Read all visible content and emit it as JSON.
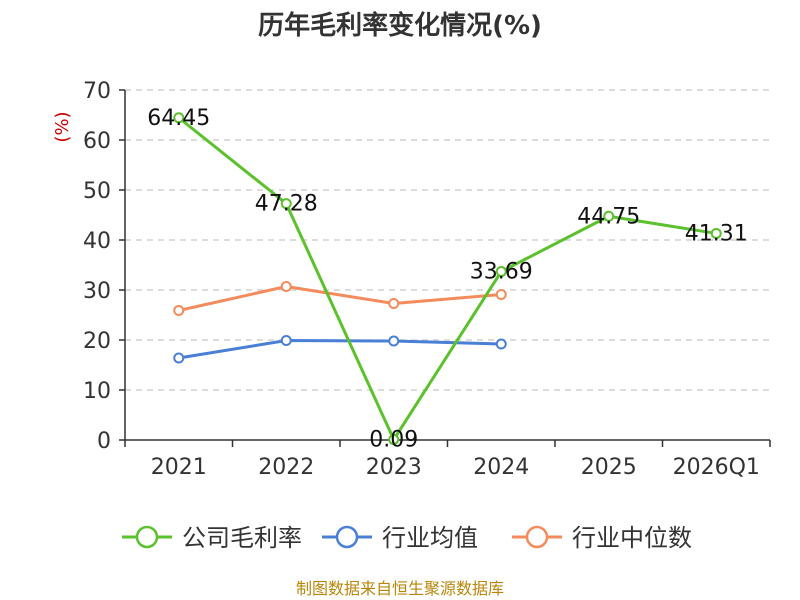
{
  "chart_data": {
    "type": "line",
    "title": "历年毛利率变化情况(%)",
    "unit_label": "(%)",
    "categories": [
      "2021",
      "2022",
      "2023",
      "2024",
      "2025",
      "2026Q1"
    ],
    "ylim": [
      0,
      70
    ],
    "yticks": [
      0,
      10,
      20,
      30,
      40,
      50,
      60,
      70
    ],
    "grid": "horizontal-dashed",
    "legend_position": "bottom",
    "series": [
      {
        "name": "公司毛利率",
        "color": "#5bc12c",
        "values": [
          64.45,
          47.28,
          0.09,
          33.69,
          44.75,
          41.31
        ],
        "labels": [
          "64.45",
          "47.28",
          "0.09",
          "33.69",
          "44.75",
          "41.31"
        ]
      },
      {
        "name": "行业均值",
        "color": "#4a7fd6",
        "values": [
          16.4,
          19.9,
          19.8,
          19.2,
          null,
          null
        ]
      },
      {
        "name": "行业中位数",
        "color": "#f48b5c",
        "values": [
          25.9,
          30.7,
          27.3,
          29.1,
          null,
          null
        ]
      }
    ],
    "source": "制图数据来自恒生聚源数据库"
  }
}
